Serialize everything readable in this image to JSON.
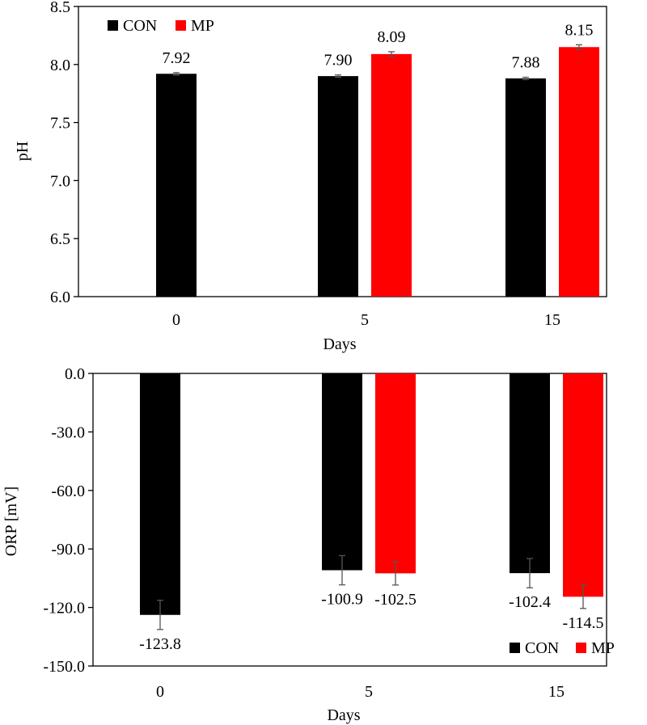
{
  "colors": {
    "con": "#000000",
    "mp": "#ff0000",
    "axis": "#000000",
    "error_bar": "#555555"
  },
  "chart_data": [
    {
      "type": "bar",
      "title": "",
      "xlabel": "Days",
      "ylabel": "pH",
      "categories": [
        "0",
        "5",
        "15"
      ],
      "ylim": [
        6.0,
        8.5
      ],
      "yticks": [
        6.0,
        6.5,
        7.0,
        7.5,
        8.0,
        8.5
      ],
      "tick_decimals": 1,
      "grid": false,
      "legend_position": "top-left",
      "series": [
        {
          "name": "CON",
          "values": [
            7.92,
            7.9,
            7.88
          ],
          "errors": [
            0.01,
            0.01,
            0.01
          ],
          "labels": [
            "7.92",
            "7.90",
            "7.88"
          ]
        },
        {
          "name": "MP",
          "values": [
            null,
            8.09,
            8.15
          ],
          "errors": [
            null,
            0.02,
            0.02
          ],
          "labels": [
            "",
            "8.09",
            "8.15"
          ]
        }
      ]
    },
    {
      "type": "bar",
      "title": "",
      "xlabel": "Days",
      "ylabel": "ORP [mV]",
      "categories": [
        "0",
        "5",
        "15"
      ],
      "ylim": [
        -150.0,
        0.0
      ],
      "yticks": [
        0.0,
        -30.0,
        -60.0,
        -90.0,
        -120.0,
        -150.0
      ],
      "tick_decimals": 1,
      "grid": false,
      "legend_position": "bottom-right",
      "series": [
        {
          "name": "CON",
          "values": [
            -123.8,
            -100.9,
            -102.4
          ],
          "errors": [
            7.5,
            7.5,
            7.5
          ],
          "labels": [
            "-123.8",
            "-100.9",
            "-102.4"
          ]
        },
        {
          "name": "MP",
          "values": [
            null,
            -102.5,
            -114.5
          ],
          "errors": [
            null,
            6.0,
            6.0
          ],
          "labels": [
            "",
            "-102.5",
            "-114.5"
          ]
        }
      ]
    }
  ]
}
